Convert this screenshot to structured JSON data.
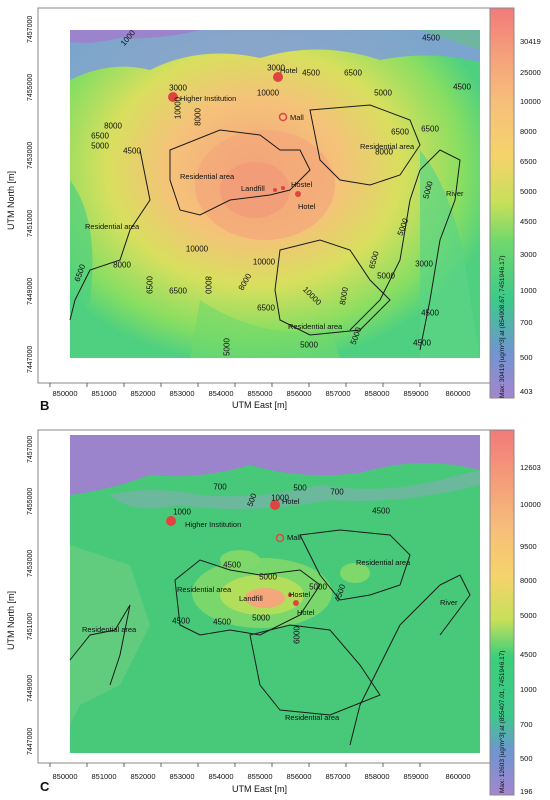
{
  "panel_b": {
    "letter": "B",
    "x_axis_label": "UTM East [m]",
    "y_axis_label": "UTM North [m]",
    "x_ticks": [
      "850000",
      "851000",
      "852000",
      "853000",
      "854000",
      "855000",
      "856000",
      "857000",
      "858000",
      "859000",
      "860000"
    ],
    "y_ticks": [
      "7447000",
      "7449000",
      "7451000",
      "7453000",
      "7455000",
      "7457000"
    ],
    "colorbar_ticks": [
      "30419",
      "25000",
      "10000",
      "8000",
      "6500",
      "5000",
      "4500",
      "3000",
      "1000",
      "700",
      "500",
      "403"
    ],
    "max_label": "Max: 30419 [ug/m^3] at (854908.67, 7451946.17)",
    "contour_labels": [
      "1000",
      "3000",
      "3000",
      "4500",
      "4500",
      "4500",
      "6500",
      "10000",
      "5000",
      "8000",
      "6500",
      "8000",
      "5000",
      "4500",
      "6500",
      "6500",
      "5000",
      "10000",
      "8000",
      "10000",
      "10000",
      "8000",
      "6500",
      "8000",
      "6500",
      "5000",
      "8000",
      "10000",
      "6500",
      "5000",
      "3000",
      "4500",
      "5000",
      "6500",
      "8000",
      "5000",
      "4500",
      "5000",
      "6500"
    ],
    "landmarks": {
      "higher_institution": "Higher Institution",
      "hotel_top": "Hotel",
      "mall": "Mall",
      "residential_1": "Residential area",
      "residential_2": "Residential area",
      "residential_3": "Residential area",
      "residential_4": "Residential area",
      "landfill": "Landfill",
      "hostel": "Hostel",
      "hotel": "Hotel",
      "river": "River"
    }
  },
  "panel_c": {
    "letter": "C",
    "x_axis_label": "UTM East [m]",
    "y_axis_label": "UTM North [m]",
    "x_ticks": [
      "850000",
      "851000",
      "852000",
      "853000",
      "854000",
      "855000",
      "856000",
      "857000",
      "858000",
      "859000",
      "860000"
    ],
    "y_ticks": [
      "7447000",
      "7449000",
      "7451000",
      "7453000",
      "7455000",
      "7457000"
    ],
    "colorbar_ticks": [
      "12603",
      "10000",
      "9500",
      "8000",
      "5000",
      "4500",
      "1000",
      "700",
      "500",
      "196"
    ],
    "max_label": "Max: 12603 [ug/m^3] at (855407.01, 7451946.17)",
    "contour_labels": [
      "700",
      "500",
      "700",
      "500",
      "1000",
      "1000",
      "4500",
      "4500",
      "5000",
      "5000",
      "4500",
      "4500",
      "5000",
      "4500",
      "6000"
    ],
    "landmarks": {
      "hotel_top": "Hotel",
      "higher_institution": "Higher Institution",
      "mall": "Mall",
      "residential_1": "Residential area",
      "residential_2": "Residential area",
      "residential_3": "Residential area",
      "residential_4": "Residential area",
      "landfill": "Landfill",
      "hostel": "Hostel",
      "hotel": "Hotel",
      "river": "River"
    }
  },
  "colors": {
    "violet": "#9b84cc",
    "blue": "#7fa0d6",
    "green": "#3dcf7a",
    "lightgreen": "#9ee05a",
    "yellow": "#f5d36b",
    "orange": "#f6b07a",
    "salmon": "#f19878",
    "red": "#e0443e",
    "contour": "#1a1a1a"
  }
}
